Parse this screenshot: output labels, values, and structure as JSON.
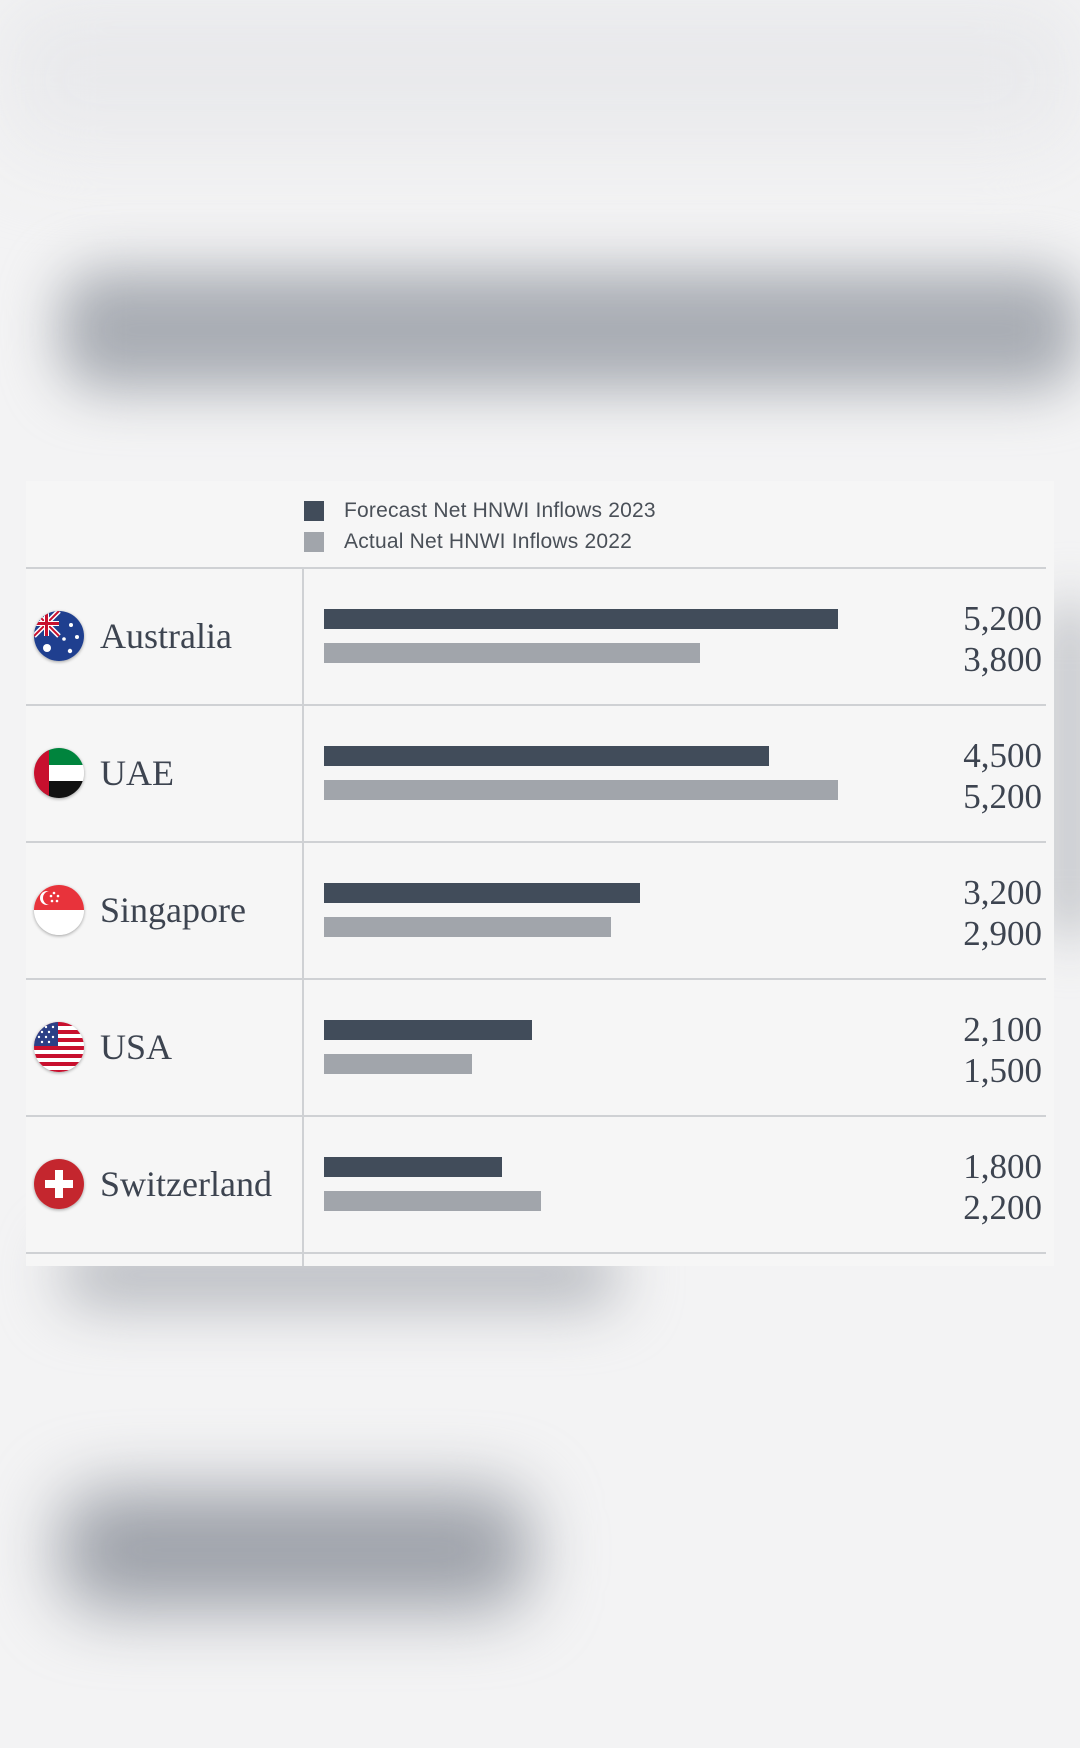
{
  "chart_data": {
    "type": "bar",
    "orientation": "horizontal",
    "categories": [
      "Australia",
      "UAE",
      "Singapore",
      "USA",
      "Switzerland"
    ],
    "series": [
      {
        "name": "Forecast Net HNWI Inflows 2023",
        "color": "#414c5a",
        "values": [
          5200,
          4500,
          3200,
          2100,
          1800
        ]
      },
      {
        "name": "Actual Net HNWI Inflows 2022",
        "color": "#a1a5ab",
        "values": [
          3800,
          5200,
          2900,
          1500,
          2200
        ]
      }
    ],
    "value_labels": [
      [
        "5,200",
        "3,800"
      ],
      [
        "4,500",
        "5,200"
      ],
      [
        "3,200",
        "2,900"
      ],
      [
        "2,100",
        "1,500"
      ],
      [
        "1,800",
        "2,200"
      ]
    ],
    "xlim": [
      0,
      5200
    ],
    "grid": false,
    "legend_position": "top"
  },
  "rows": [
    {
      "country": "Australia",
      "flag_icon": "australia-flag-icon"
    },
    {
      "country": "UAE",
      "flag_icon": "uae-flag-icon"
    },
    {
      "country": "Singapore",
      "flag_icon": "singapore-flag-icon"
    },
    {
      "country": "USA",
      "flag_icon": "usa-flag-icon"
    },
    {
      "country": "Switzerland",
      "flag_icon": "switzerland-flag-icon"
    }
  ]
}
